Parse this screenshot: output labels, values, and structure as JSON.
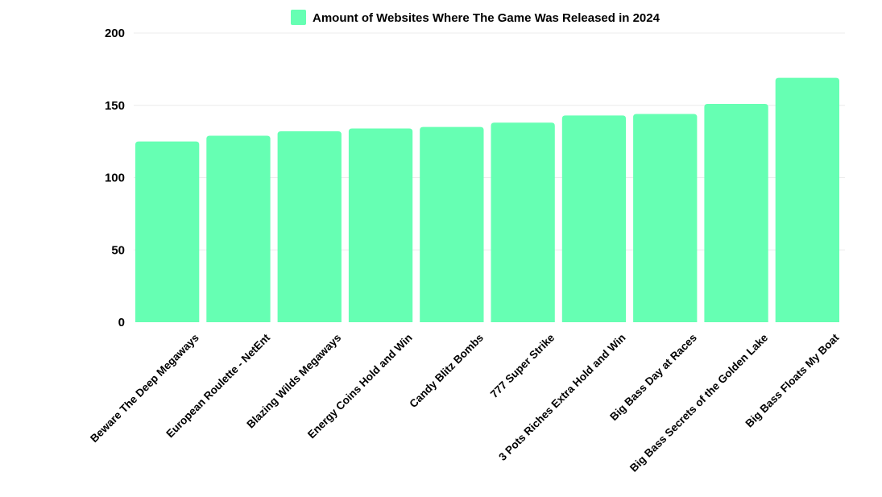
{
  "chart_data": {
    "type": "bar",
    "categories": [
      "Beware The Deep Megaways",
      "European Roulette - NetEnt",
      "Blazing Wilds Megaways",
      "Energy Coins Hold and Win",
      "Candy Blitz Bombs",
      "777 Super Strike",
      "3 Pots Riches Extra Hold and Win",
      "Big Bass Day at Races",
      "Big Bass Secrets of the Golden Lake",
      "Big Bass Floats My Boat"
    ],
    "series": [
      {
        "name": "Amount of Websites Where The Game Was Released in 2024",
        "values": [
          125,
          129,
          132,
          134,
          135,
          138,
          143,
          144,
          151,
          169
        ],
        "color": "#66ffb3"
      }
    ],
    "ylim": [
      0,
      200
    ],
    "yticks": [
      0,
      50,
      100,
      150,
      200
    ],
    "grid": true,
    "legend_position": "top-center"
  }
}
